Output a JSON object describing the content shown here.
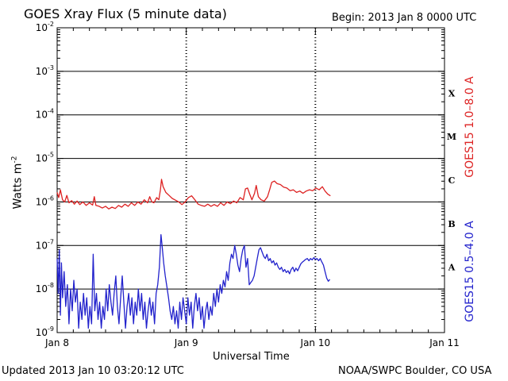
{
  "chart_data": {
    "type": "line",
    "title": "GOES Xray Flux (5 minute data)",
    "begin_text": "Begin:  2013 Jan 8 0000 UTC",
    "xlabel": "Universal Time",
    "ylabel": "Watts m",
    "ylabel_sup": "-2",
    "y_scale": "log",
    "ylim": [
      1e-09,
      0.01
    ],
    "xlim_hours": [
      0,
      72
    ],
    "x_ticks": [
      {
        "label": "Jan 8",
        "hour": 0
      },
      {
        "label": "Jan 9",
        "hour": 24
      },
      {
        "label": "Jan 10",
        "hour": 48
      },
      {
        "label": "Jan 11",
        "hour": 72
      }
    ],
    "y_ticks": [
      {
        "base": "10",
        "exp": "-9",
        "value": -9
      },
      {
        "base": "10",
        "exp": "-8",
        "value": -8
      },
      {
        "base": "10",
        "exp": "-7",
        "value": -7
      },
      {
        "base": "10",
        "exp": "-6",
        "value": -6
      },
      {
        "base": "10",
        "exp": "-5",
        "value": -5
      },
      {
        "base": "10",
        "exp": "-4",
        "value": -4
      },
      {
        "base": "10",
        "exp": "-3",
        "value": -3
      },
      {
        "base": "10",
        "exp": "-2",
        "value": -2
      }
    ],
    "flare_classes": [
      {
        "label": "A",
        "value": -7.5
      },
      {
        "label": "B",
        "value": -6.5
      },
      {
        "label": "C",
        "value": -5.5
      },
      {
        "label": "M",
        "value": -4.5
      },
      {
        "label": "X",
        "value": -3.5
      }
    ],
    "grid": true,
    "series": [
      {
        "name": "GOES15 1.0–8.0 A",
        "color": "#dd2222",
        "log10_values": [
          [
            0.0,
            -5.78
          ],
          [
            0.3,
            -5.9
          ],
          [
            0.6,
            -5.72
          ],
          [
            1.0,
            -5.95
          ],
          [
            1.4,
            -6.0
          ],
          [
            1.8,
            -5.85
          ],
          [
            2.2,
            -6.02
          ],
          [
            2.7,
            -5.97
          ],
          [
            3.2,
            -6.05
          ],
          [
            3.7,
            -5.98
          ],
          [
            4.2,
            -6.06
          ],
          [
            4.8,
            -6.0
          ],
          [
            5.4,
            -6.08
          ],
          [
            6.0,
            -6.02
          ],
          [
            6.6,
            -6.07
          ],
          [
            6.9,
            -5.88
          ],
          [
            7.2,
            -6.08
          ],
          [
            7.8,
            -6.1
          ],
          [
            8.4,
            -6.14
          ],
          [
            9.0,
            -6.1
          ],
          [
            9.6,
            -6.16
          ],
          [
            10.2,
            -6.12
          ],
          [
            10.8,
            -6.15
          ],
          [
            11.4,
            -6.08
          ],
          [
            12.0,
            -6.12
          ],
          [
            12.6,
            -6.05
          ],
          [
            13.2,
            -6.1
          ],
          [
            13.8,
            -6.02
          ],
          [
            14.4,
            -6.08
          ],
          [
            15.0,
            -6.0
          ],
          [
            15.6,
            -6.05
          ],
          [
            16.2,
            -5.95
          ],
          [
            16.8,
            -6.02
          ],
          [
            17.2,
            -5.88
          ],
          [
            17.6,
            -6.0
          ],
          [
            18.0,
            -6.02
          ],
          [
            18.5,
            -5.9
          ],
          [
            18.9,
            -5.95
          ],
          [
            19.2,
            -5.72
          ],
          [
            19.4,
            -5.48
          ],
          [
            19.7,
            -5.65
          ],
          [
            20.2,
            -5.78
          ],
          [
            20.8,
            -5.85
          ],
          [
            21.4,
            -5.92
          ],
          [
            22.0,
            -5.96
          ],
          [
            22.6,
            -6.0
          ],
          [
            23.2,
            -6.06
          ],
          [
            23.8,
            -6.0
          ],
          [
            24.4,
            -5.9
          ],
          [
            25.0,
            -5.86
          ],
          [
            25.6,
            -5.95
          ],
          [
            26.2,
            -6.05
          ],
          [
            26.8,
            -6.08
          ],
          [
            27.4,
            -6.1
          ],
          [
            28.0,
            -6.05
          ],
          [
            28.6,
            -6.1
          ],
          [
            29.2,
            -6.06
          ],
          [
            29.8,
            -6.1
          ],
          [
            30.4,
            -6.02
          ],
          [
            31.0,
            -6.08
          ],
          [
            31.6,
            -6.0
          ],
          [
            32.2,
            -6.04
          ],
          [
            32.8,
            -5.98
          ],
          [
            33.4,
            -6.02
          ],
          [
            34.0,
            -5.9
          ],
          [
            34.6,
            -5.95
          ],
          [
            35.0,
            -5.7
          ],
          [
            35.4,
            -5.68
          ],
          [
            35.8,
            -5.82
          ],
          [
            36.2,
            -5.95
          ],
          [
            36.7,
            -5.8
          ],
          [
            37.0,
            -5.62
          ],
          [
            37.4,
            -5.88
          ],
          [
            37.9,
            -5.95
          ],
          [
            38.5,
            -5.98
          ],
          [
            39.1,
            -5.88
          ],
          [
            39.5,
            -5.72
          ],
          [
            39.9,
            -5.55
          ],
          [
            40.4,
            -5.52
          ],
          [
            40.9,
            -5.58
          ],
          [
            41.5,
            -5.6
          ],
          [
            42.1,
            -5.66
          ],
          [
            42.7,
            -5.68
          ],
          [
            43.3,
            -5.74
          ],
          [
            43.9,
            -5.72
          ],
          [
            44.5,
            -5.78
          ],
          [
            45.1,
            -5.75
          ],
          [
            45.7,
            -5.8
          ],
          [
            46.3,
            -5.75
          ],
          [
            46.9,
            -5.72
          ],
          [
            47.5,
            -5.74
          ],
          [
            48.1,
            -5.68
          ],
          [
            48.7,
            -5.72
          ],
          [
            49.3,
            -5.65
          ],
          [
            49.8,
            -5.75
          ],
          [
            50.3,
            -5.82
          ],
          [
            50.8,
            -5.86
          ]
        ]
      },
      {
        "name": "GOES15 0.5–4.0 A",
        "color": "#2222cc",
        "log10_values": [
          [
            0.0,
            -7.3
          ],
          [
            0.2,
            -8.1
          ],
          [
            0.4,
            -7.1
          ],
          [
            0.6,
            -8.6
          ],
          [
            0.8,
            -7.4
          ],
          [
            1.0,
            -8.2
          ],
          [
            1.3,
            -7.6
          ],
          [
            1.6,
            -8.4
          ],
          [
            1.9,
            -7.9
          ],
          [
            2.2,
            -8.8
          ],
          [
            2.5,
            -8.0
          ],
          [
            2.8,
            -8.5
          ],
          [
            3.1,
            -7.8
          ],
          [
            3.4,
            -8.3
          ],
          [
            3.7,
            -8.0
          ],
          [
            4.0,
            -8.9
          ],
          [
            4.3,
            -8.3
          ],
          [
            4.6,
            -8.7
          ],
          [
            4.9,
            -8.1
          ],
          [
            5.2,
            -8.6
          ],
          [
            5.5,
            -8.2
          ],
          [
            5.8,
            -8.9
          ],
          [
            6.1,
            -8.4
          ],
          [
            6.4,
            -8.8
          ],
          [
            6.7,
            -7.2
          ],
          [
            7.0,
            -8.5
          ],
          [
            7.3,
            -8.1
          ],
          [
            7.6,
            -8.7
          ],
          [
            7.9,
            -8.3
          ],
          [
            8.2,
            -8.9
          ],
          [
            8.5,
            -8.4
          ],
          [
            8.8,
            -8.7
          ],
          [
            9.1,
            -8.0
          ],
          [
            9.4,
            -8.5
          ],
          [
            9.7,
            -7.9
          ],
          [
            10.0,
            -8.3
          ],
          [
            10.3,
            -8.6
          ],
          [
            10.6,
            -8.1
          ],
          [
            10.9,
            -7.7
          ],
          [
            11.2,
            -8.4
          ],
          [
            11.5,
            -8.8
          ],
          [
            11.8,
            -8.2
          ],
          [
            12.1,
            -7.7
          ],
          [
            12.4,
            -8.3
          ],
          [
            12.7,
            -8.9
          ],
          [
            13.0,
            -8.4
          ],
          [
            13.3,
            -8.1
          ],
          [
            13.6,
            -8.6
          ],
          [
            13.9,
            -8.2
          ],
          [
            14.2,
            -8.8
          ],
          [
            14.5,
            -8.3
          ],
          [
            14.8,
            -8.6
          ],
          [
            15.1,
            -8.0
          ],
          [
            15.4,
            -8.5
          ],
          [
            15.7,
            -8.1
          ],
          [
            16.0,
            -8.7
          ],
          [
            16.3,
            -8.3
          ],
          [
            16.6,
            -8.9
          ],
          [
            16.9,
            -8.5
          ],
          [
            17.2,
            -8.2
          ],
          [
            17.5,
            -8.6
          ],
          [
            17.8,
            -8.3
          ],
          [
            18.1,
            -8.8
          ],
          [
            18.4,
            -8.1
          ],
          [
            18.7,
            -7.9
          ],
          [
            19.0,
            -7.5
          ],
          [
            19.3,
            -6.75
          ],
          [
            19.5,
            -7.0
          ],
          [
            19.8,
            -7.4
          ],
          [
            20.1,
            -7.7
          ],
          [
            20.4,
            -7.95
          ],
          [
            20.7,
            -8.2
          ],
          [
            21.0,
            -8.5
          ],
          [
            21.3,
            -8.7
          ],
          [
            21.6,
            -8.4
          ],
          [
            21.9,
            -8.8
          ],
          [
            22.2,
            -8.5
          ],
          [
            22.5,
            -8.9
          ],
          [
            22.8,
            -8.3
          ],
          [
            23.1,
            -8.7
          ],
          [
            23.4,
            -8.2
          ],
          [
            23.7,
            -8.5
          ],
          [
            24.0,
            -8.8
          ],
          [
            24.3,
            -8.2
          ],
          [
            24.6,
            -8.6
          ],
          [
            24.9,
            -8.3
          ],
          [
            25.2,
            -8.9
          ],
          [
            25.5,
            -8.4
          ],
          [
            25.8,
            -8.1
          ],
          [
            26.1,
            -8.5
          ],
          [
            26.4,
            -8.2
          ],
          [
            26.7,
            -8.7
          ],
          [
            27.0,
            -8.4
          ],
          [
            27.3,
            -8.9
          ],
          [
            27.6,
            -8.5
          ],
          [
            27.9,
            -8.3
          ],
          [
            28.2,
            -8.7
          ],
          [
            28.5,
            -8.4
          ],
          [
            28.8,
            -8.6
          ],
          [
            29.1,
            -8.1
          ],
          [
            29.4,
            -8.4
          ],
          [
            29.7,
            -8.0
          ],
          [
            30.0,
            -8.3
          ],
          [
            30.3,
            -7.9
          ],
          [
            30.6,
            -8.1
          ],
          [
            30.9,
            -7.8
          ],
          [
            31.2,
            -7.95
          ],
          [
            31.5,
            -7.6
          ],
          [
            31.8,
            -7.8
          ],
          [
            32.1,
            -7.4
          ],
          [
            32.4,
            -7.2
          ],
          [
            32.7,
            -7.3
          ],
          [
            33.0,
            -7.0
          ],
          [
            33.3,
            -7.2
          ],
          [
            33.6,
            -7.45
          ],
          [
            33.9,
            -7.6
          ],
          [
            34.2,
            -7.3
          ],
          [
            34.5,
            -7.1
          ],
          [
            34.8,
            -7.0
          ],
          [
            35.1,
            -7.5
          ],
          [
            35.4,
            -7.3
          ],
          [
            35.7,
            -7.9
          ],
          [
            36.0,
            -7.85
          ],
          [
            36.3,
            -7.8
          ],
          [
            36.6,
            -7.7
          ],
          [
            36.9,
            -7.5
          ],
          [
            37.2,
            -7.3
          ],
          [
            37.5,
            -7.1
          ],
          [
            37.8,
            -7.05
          ],
          [
            38.1,
            -7.15
          ],
          [
            38.4,
            -7.25
          ],
          [
            38.7,
            -7.3
          ],
          [
            39.0,
            -7.2
          ],
          [
            39.3,
            -7.35
          ],
          [
            39.6,
            -7.3
          ],
          [
            39.9,
            -7.4
          ],
          [
            40.2,
            -7.35
          ],
          [
            40.5,
            -7.45
          ],
          [
            40.8,
            -7.4
          ],
          [
            41.1,
            -7.5
          ],
          [
            41.4,
            -7.55
          ],
          [
            41.7,
            -7.5
          ],
          [
            42.0,
            -7.6
          ],
          [
            42.3,
            -7.55
          ],
          [
            42.6,
            -7.62
          ],
          [
            42.9,
            -7.58
          ],
          [
            43.2,
            -7.65
          ],
          [
            43.5,
            -7.55
          ],
          [
            43.8,
            -7.5
          ],
          [
            44.1,
            -7.6
          ],
          [
            44.4,
            -7.52
          ],
          [
            44.7,
            -7.58
          ],
          [
            45.0,
            -7.5
          ],
          [
            45.3,
            -7.42
          ],
          [
            45.6,
            -7.38
          ],
          [
            45.9,
            -7.35
          ],
          [
            46.2,
            -7.32
          ],
          [
            46.5,
            -7.3
          ],
          [
            46.8,
            -7.35
          ],
          [
            47.1,
            -7.3
          ],
          [
            47.4,
            -7.33
          ],
          [
            47.7,
            -7.28
          ],
          [
            48.0,
            -7.32
          ],
          [
            48.3,
            -7.3
          ],
          [
            48.6,
            -7.35
          ],
          [
            48.9,
            -7.3
          ],
          [
            49.2,
            -7.38
          ],
          [
            49.5,
            -7.45
          ],
          [
            49.8,
            -7.6
          ],
          [
            50.1,
            -7.75
          ],
          [
            50.4,
            -7.82
          ],
          [
            50.7,
            -7.78
          ]
        ]
      }
    ]
  },
  "footer": {
    "updated": "Updated 2013 Jan 10 03:20:12 UTC",
    "credit": "NOAA/SWPC Boulder, CO USA"
  },
  "labels": {
    "series_red": "GOES15 1.0–8.0 A",
    "series_blue": "GOES15 0.5–4.0 A"
  }
}
